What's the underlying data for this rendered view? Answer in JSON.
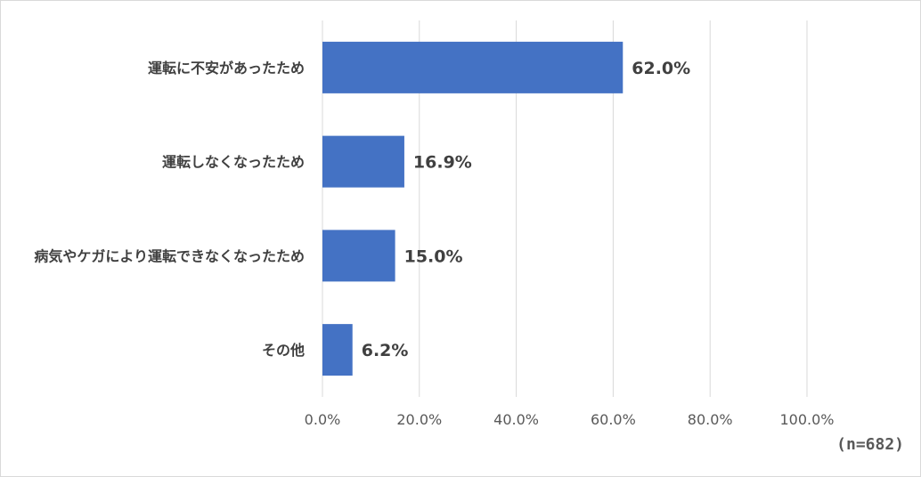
{
  "chart_data": {
    "type": "bar",
    "orientation": "horizontal",
    "categories": [
      "運転に不安があったため",
      "運転しなくなったため",
      "病気やケガにより運転できなくなったため",
      "その他"
    ],
    "values": [
      62.0,
      16.9,
      15.0,
      6.2
    ],
    "value_labels": [
      "62.0%",
      "16.9%",
      "15.0%",
      "6.2%"
    ],
    "xlim": [
      0,
      100
    ],
    "x_ticks": [
      0,
      20,
      40,
      60,
      80,
      100
    ],
    "x_tick_labels": [
      "0.0%",
      "20.0%",
      "40.0%",
      "60.0%",
      "80.0%",
      "100.0%"
    ],
    "grid": true,
    "bar_color": "#4472c4",
    "grid_color": "#d9d9d9"
  },
  "note": "(n=682)"
}
